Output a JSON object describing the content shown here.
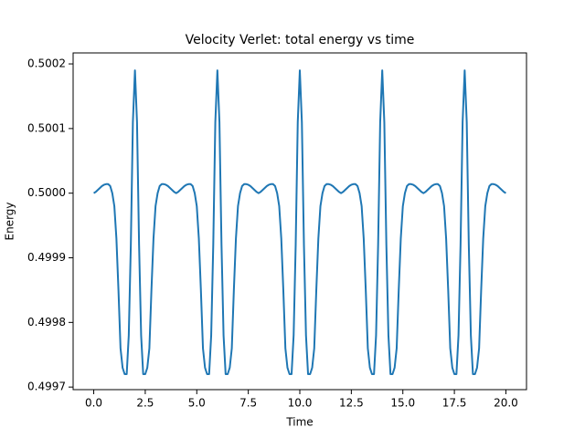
{
  "chart_data": {
    "type": "line",
    "title": "Velocity Verlet: total energy vs time",
    "x_label": "Time",
    "y_label": "Energy",
    "xlim": [
      -1,
      21
    ],
    "ylim": [
      0.499696,
      0.500217
    ],
    "xticks": [
      {
        "value": 0,
        "label": "0.0"
      },
      2.5,
      {
        "value": 5,
        "label": "5.0"
      },
      7.5,
      {
        "value": 10,
        "label": "10.0"
      },
      12.5,
      {
        "value": 15,
        "label": "15.0"
      },
      17.5,
      {
        "value": 20,
        "label": "20.0"
      }
    ],
    "yticks": [
      0.4997,
      0.4998,
      0.4999,
      {
        "value": 0.5,
        "label": "0.5000"
      },
      0.5001,
      0.5002
    ],
    "grid": false,
    "x": [
      0,
      0.1,
      0.2,
      0.3,
      0.4,
      0.5,
      0.6,
      0.7,
      0.8,
      0.9,
      1.0,
      1.1,
      1.2,
      1.3,
      1.4,
      1.5,
      1.6,
      1.7,
      1.8,
      1.9,
      2.0,
      2.1,
      2.2,
      2.3,
      2.4,
      2.5,
      2.6,
      2.7,
      2.8,
      2.9,
      3.0,
      3.1,
      3.2,
      3.3,
      3.4,
      3.5,
      3.6,
      3.7,
      3.8,
      3.9,
      4.0,
      4.1,
      4.2,
      4.3,
      4.4,
      4.5,
      4.6,
      4.7,
      4.8,
      4.9,
      5.0,
      5.1,
      5.2,
      5.3,
      5.4,
      5.5,
      5.6,
      5.7,
      5.8,
      5.9,
      6.0,
      6.1,
      6.2,
      6.3,
      6.4,
      6.5,
      6.6,
      6.7,
      6.8,
      6.9,
      7.0,
      7.1,
      7.2,
      7.3,
      7.4,
      7.5,
      7.6,
      7.7,
      7.8,
      7.9,
      8.0,
      8.1,
      8.2,
      8.3,
      8.4,
      8.5,
      8.6,
      8.7,
      8.8,
      8.9,
      9.0,
      9.1,
      9.2,
      9.3,
      9.4,
      9.5,
      9.6,
      9.7,
      9.8,
      9.9,
      10.0,
      10.1,
      10.2,
      10.3,
      10.4,
      10.5,
      10.6,
      10.7,
      10.8,
      10.9,
      11.0,
      11.1,
      11.2,
      11.3,
      11.4,
      11.5,
      11.6,
      11.7,
      11.8,
      11.9,
      12.0,
      12.1,
      12.2,
      12.3,
      12.4,
      12.5,
      12.6,
      12.7,
      12.8,
      12.9,
      13.0,
      13.1,
      13.2,
      13.3,
      13.4,
      13.5,
      13.6,
      13.7,
      13.8,
      13.9,
      14.0,
      14.1,
      14.2,
      14.3,
      14.4,
      14.5,
      14.6,
      14.7,
      14.8,
      14.9,
      15.0,
      15.1,
      15.2,
      15.3,
      15.4,
      15.5,
      15.6,
      15.7,
      15.8,
      15.9,
      16.0,
      16.1,
      16.2,
      16.3,
      16.4,
      16.5,
      16.6,
      16.7,
      16.8,
      16.9,
      17.0,
      17.1,
      17.2,
      17.3,
      17.4,
      17.5,
      17.6,
      17.7,
      17.8,
      17.9,
      18.0,
      18.1,
      18.2,
      18.3,
      18.4,
      18.5,
      18.6,
      18.7,
      18.8,
      18.9,
      19.0,
      19.1,
      19.2,
      19.3,
      19.4,
      19.5,
      19.6,
      19.7,
      19.8,
      19.9,
      20.0
    ],
    "series": [
      {
        "color": "#1f77b4",
        "values": [
          0.5,
          0.500002,
          0.500005,
          0.500008,
          0.500011,
          0.500013,
          0.500014,
          0.500014,
          0.500011,
          0.5,
          0.49998,
          0.49993,
          0.49985,
          0.49976,
          0.49973,
          0.49972,
          0.49972,
          0.49978,
          0.49992,
          0.50011,
          0.50019,
          0.50011,
          0.49992,
          0.49978,
          0.49972,
          0.49972,
          0.49973,
          0.49976,
          0.49985,
          0.49993,
          0.49998,
          0.5,
          0.500011,
          0.500014,
          0.500014,
          0.500013,
          0.500011,
          0.500008,
          0.500005,
          0.500002,
          0.5,
          0.500002,
          0.500005,
          0.500008,
          0.500011,
          0.500013,
          0.500014,
          0.500014,
          0.500011,
          0.5,
          0.49998,
          0.49993,
          0.49985,
          0.49976,
          0.49973,
          0.49972,
          0.49972,
          0.49978,
          0.49992,
          0.50011,
          0.50019,
          0.50011,
          0.49992,
          0.49978,
          0.49972,
          0.49972,
          0.49973,
          0.49976,
          0.49985,
          0.49993,
          0.49998,
          0.5,
          0.500011,
          0.500014,
          0.500014,
          0.500013,
          0.500011,
          0.500008,
          0.500005,
          0.500002,
          0.5,
          0.500002,
          0.500005,
          0.500008,
          0.500011,
          0.500013,
          0.500014,
          0.500014,
          0.500011,
          0.5,
          0.49998,
          0.49993,
          0.49985,
          0.49976,
          0.49973,
          0.49972,
          0.49972,
          0.49978,
          0.49992,
          0.50011,
          0.50019,
          0.50011,
          0.49992,
          0.49978,
          0.49972,
          0.49972,
          0.49973,
          0.49976,
          0.49985,
          0.49993,
          0.49998,
          0.5,
          0.500011,
          0.500014,
          0.500014,
          0.500013,
          0.500011,
          0.500008,
          0.500005,
          0.500002,
          0.5,
          0.500002,
          0.500005,
          0.500008,
          0.500011,
          0.500013,
          0.500014,
          0.500014,
          0.500011,
          0.5,
          0.49998,
          0.49993,
          0.49985,
          0.49976,
          0.49973,
          0.49972,
          0.49972,
          0.49978,
          0.49992,
          0.50011,
          0.50019,
          0.50011,
          0.49992,
          0.49978,
          0.49972,
          0.49972,
          0.49973,
          0.49976,
          0.49985,
          0.49993,
          0.49998,
          0.5,
          0.500011,
          0.500014,
          0.500014,
          0.500013,
          0.500011,
          0.500008,
          0.500005,
          0.500002,
          0.5,
          0.500002,
          0.500005,
          0.500008,
          0.500011,
          0.500013,
          0.500014,
          0.500014,
          0.500011,
          0.5,
          0.49998,
          0.49993,
          0.49985,
          0.49976,
          0.49973,
          0.49972,
          0.49972,
          0.49978,
          0.49992,
          0.50011,
          0.50019,
          0.50011,
          0.49992,
          0.49978,
          0.49972,
          0.49972,
          0.49973,
          0.49976,
          0.49985,
          0.49993,
          0.49998,
          0.5,
          0.500011,
          0.500014,
          0.500014,
          0.500013,
          0.500011,
          0.500008,
          0.500005,
          0.500002,
          0.5
        ]
      }
    ]
  }
}
